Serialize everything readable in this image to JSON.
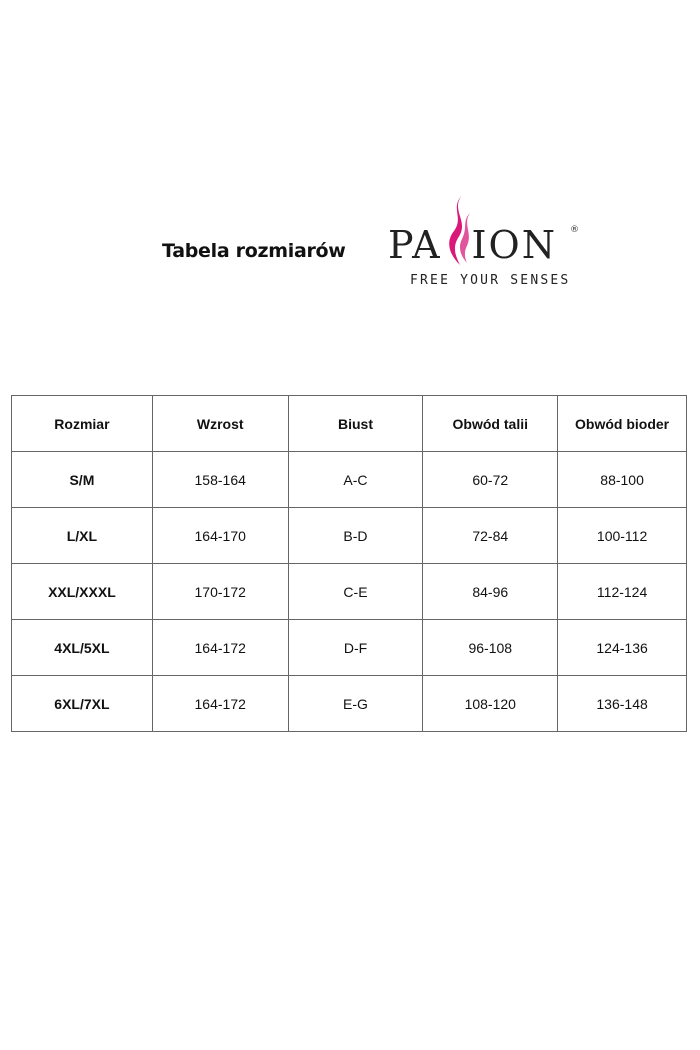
{
  "title": "Tabela rozmiarów",
  "logo": {
    "text": "PASSION",
    "left": "PA",
    "right": "ION",
    "registered": "®",
    "tagline": "FREE YOUR SENSES",
    "accent": "#d9187a"
  },
  "table": {
    "headers": [
      "Rozmiar",
      "Wzrost",
      "Biust",
      "Obwód talii",
      "Obwód bioder"
    ],
    "rows": [
      [
        "S/M",
        "158-164",
        "A-C",
        "60-72",
        "88-100"
      ],
      [
        "L/XL",
        "164-170",
        "B-D",
        "72-84",
        "100-112"
      ],
      [
        "XXL/XXXL",
        "170-172",
        "C-E",
        "84-96",
        "112-124"
      ],
      [
        "4XL/5XL",
        "164-172",
        "D-F",
        "96-108",
        "124-136"
      ],
      [
        "6XL/7XL",
        "164-172",
        "E-G",
        "108-120",
        "136-148"
      ]
    ]
  }
}
